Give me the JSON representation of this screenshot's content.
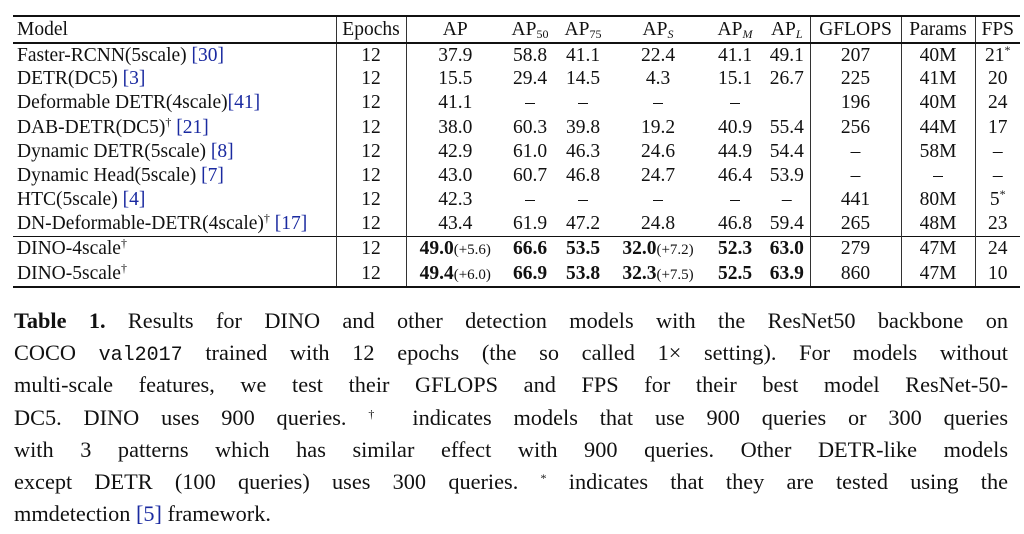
{
  "table": {
    "columns": [
      {
        "key": "model",
        "label": "Model"
      },
      {
        "key": "epochs",
        "label": "Epochs"
      },
      {
        "key": "ap",
        "label": "AP"
      },
      {
        "key": "ap50",
        "label": "AP",
        "sub": "50"
      },
      {
        "key": "ap75",
        "label": "AP",
        "sub": "75"
      },
      {
        "key": "aps",
        "label": "AP",
        "sub": "S",
        "italic": true
      },
      {
        "key": "apm",
        "label": "AP",
        "sub": "M",
        "italic": true
      },
      {
        "key": "apl",
        "label": "AP",
        "sub": "L",
        "italic": true
      },
      {
        "key": "gflops",
        "label": "GFLOPS"
      },
      {
        "key": "params",
        "label": "Params"
      },
      {
        "key": "fps",
        "label": "FPS"
      }
    ],
    "rows": [
      {
        "model": "Faster-RCNN(5scale)",
        "dagger": false,
        "cite": "[30]",
        "epochs": "12",
        "ap": "37.9",
        "ap50": "58.8",
        "ap75": "41.1",
        "aps": "22.4",
        "apm": "41.1",
        "apl": "49.1",
        "gflops": "207",
        "params": "40M",
        "fps": "21",
        "fps_star": "*"
      },
      {
        "model": "DETR(DC5)",
        "dagger": false,
        "cite": "[3]",
        "epochs": "12",
        "ap": "15.5",
        "ap50": "29.4",
        "ap75": "14.5",
        "aps": "4.3",
        "apm": "15.1",
        "apl": "26.7",
        "gflops": "225",
        "params": "41M",
        "fps": "20"
      },
      {
        "model": "Deformable DETR(4scale)",
        "dagger": false,
        "cite": "[41]",
        "cite_nospace": true,
        "epochs": "12",
        "ap": "41.1",
        "ap50": "–",
        "ap75": "–",
        "aps": "–",
        "apm": "–",
        "apl": "",
        "gflops": "196",
        "params": "40M",
        "fps": "24"
      },
      {
        "model": "DAB-DETR(DC5)",
        "dagger": true,
        "cite": "[21]",
        "epochs": "12",
        "ap": "38.0",
        "ap50": "60.3",
        "ap75": "39.8",
        "aps": "19.2",
        "apm": "40.9",
        "apl": "55.4",
        "gflops": "256",
        "params": "44M",
        "fps": "17"
      },
      {
        "model": "Dynamic DETR(5scale)",
        "dagger": false,
        "cite": "[8]",
        "epochs": "12",
        "ap": "42.9",
        "ap50": "61.0",
        "ap75": "46.3",
        "aps": "24.6",
        "apm": "44.9",
        "apl": "54.4",
        "gflops": "–",
        "params": "58M",
        "fps": "–"
      },
      {
        "model": "Dynamic Head(5scale)",
        "dagger": false,
        "cite": "[7]",
        "epochs": "12",
        "ap": "43.0",
        "ap50": "60.7",
        "ap75": "46.8",
        "aps": "24.7",
        "apm": "46.4",
        "apl": "53.9",
        "gflops": "–",
        "params": "–",
        "fps": "–"
      },
      {
        "model": "HTC(5scale)",
        "dagger": false,
        "cite": "[4]",
        "epochs": "12",
        "ap": "42.3",
        "ap50": "–",
        "ap75": "–",
        "aps": "–",
        "apm": "–",
        "apl": "–",
        "gflops": "441",
        "params": "80M",
        "fps": "5",
        "fps_star": "*"
      },
      {
        "model": "DN-Deformable-DETR(4scale)",
        "dagger": true,
        "cite": "[17]",
        "epochs": "12",
        "ap": "43.4",
        "ap50": "61.9",
        "ap75": "47.2",
        "aps": "24.8",
        "apm": "46.8",
        "apl": "59.4",
        "gflops": "265",
        "params": "48M",
        "fps": "23"
      },
      {
        "model": "DINO-4scale",
        "dagger": true,
        "ours": true,
        "epochs": "12",
        "ap": "49.0",
        "ap_delta": "(+5.6)",
        "ap50": "66.6",
        "ap75": "53.5",
        "aps": "32.0",
        "aps_delta": "(+7.2)",
        "apm": "52.3",
        "apl": "63.0",
        "gflops": "279",
        "params": "47M",
        "fps": "24"
      },
      {
        "model": "DINO-5scale",
        "dagger": true,
        "ours": true,
        "epochs": "12",
        "ap": "49.4",
        "ap_delta": "(+6.0)",
        "ap50": "66.9",
        "ap75": "53.8",
        "aps": "32.3",
        "aps_delta": "(+7.5)",
        "apm": "52.5",
        "apl": "63.9",
        "gflops": "860",
        "params": "47M",
        "fps": "10"
      }
    ],
    "dagger_symbol": "†"
  },
  "caption": {
    "lines": [
      [
        {
          "t": "Table 1.",
          "s": "bold"
        },
        {
          "t": " Results for DINO and other detection models with the ResNet50 backbone on"
        }
      ],
      [
        {
          "t": "COCO "
        },
        {
          "t": "val2017",
          "s": "mono"
        },
        {
          "t": " trained with 12 epochs (the so called 1× setting). For models without"
        }
      ],
      [
        {
          "t": "multi-scale features, we test their GFLOPS and FPS for their best model ResNet-50-"
        }
      ],
      [
        {
          "t": "DC5. DINO uses 900 queries. "
        },
        {
          "t": "†",
          "s": "sup"
        },
        {
          "t": " indicates models that use 900 queries or 300 queries"
        }
      ],
      [
        {
          "t": "with 3 patterns which has similar effect with 900 queries. Other DETR-like models"
        }
      ],
      [
        {
          "t": "except DETR (100 queries) uses 300 queries. "
        },
        {
          "t": "*",
          "s": "sup"
        },
        {
          "t": " indicates that they are tested using the"
        }
      ],
      [
        {
          "t": "mmdetection "
        },
        {
          "t": "[5]",
          "s": "cite"
        },
        {
          "t": " framework."
        }
      ]
    ]
  },
  "colors": {
    "cite": "#1a2aa0",
    "text": "#111111"
  }
}
